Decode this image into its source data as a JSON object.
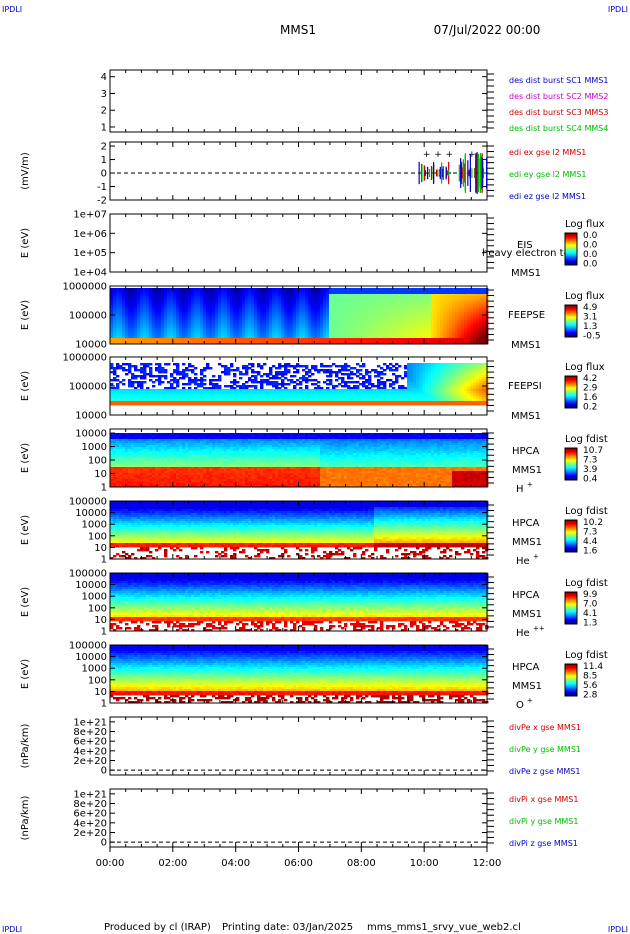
{
  "header": {
    "corner_tl": "IPDLI",
    "corner_tr": "IPDLI",
    "title": "MMS1",
    "date": "07/Jul/2022 00:00",
    "corner_bl": "IPDLI",
    "corner_br": "IPDLI"
  },
  "footer": {
    "produced": "Produced by cl (IRAP)",
    "printing": "Printing date: 03/Jan/2025",
    "file": "mms_mms1_srvy_vue_web2.cl"
  },
  "time_axis": {
    "ticks": [
      "00:00",
      "02:00",
      "04:00",
      "06:00",
      "08:00",
      "10:00",
      "12:00"
    ],
    "start_hours": 0,
    "end_hours": 12
  },
  "chart_data": [
    {
      "type": "line",
      "panel": "dist",
      "ylabel": "",
      "ylim": [
        0.7,
        4.4
      ],
      "ytick_labels": [
        "4",
        "3",
        "2",
        "1"
      ],
      "yticks": [
        4,
        3,
        2,
        1
      ],
      "legend": [
        {
          "text": "des dist burst SC1 MMS1",
          "color": "#0000cc"
        },
        {
          "text": "des dist burst SC2 MMS2",
          "color": "#cc00cc"
        },
        {
          "text": "des dist burst SC3 MMS3",
          "color": "#cc0000"
        },
        {
          "text": "des dist burst SC4 MMS4",
          "color": "#00bb00"
        }
      ]
    },
    {
      "type": "line",
      "panel": "efield",
      "ylabel": "(mV/m)",
      "ylim": [
        -2,
        2.3
      ],
      "ytick_labels": [
        "2",
        "1",
        "0",
        "-1",
        "-2"
      ],
      "yticks": [
        2,
        1,
        0,
        -1,
        -2
      ],
      "dashed_zero": true,
      "legend": [
        {
          "text": "edi ex gse l2 MMS1",
          "color": "#cc0000"
        },
        {
          "text": "edi ey gse l2 MMS1",
          "color": "#00bb00"
        },
        {
          "text": "edi ez gse l2 MMS1",
          "color": "#0000cc"
        }
      ]
    },
    {
      "type": "heatmap",
      "panel": "eis",
      "ylabel": "E (eV)",
      "log_y": true,
      "ylim": [
        10000,
        10000000
      ],
      "ytick_labels": [
        "1e+07",
        "1e+06",
        "1e+05",
        "1e+04"
      ],
      "instrument": [
        "EIS",
        "MMS1"
      ],
      "overlay_text": "heavy electron to",
      "colorbar": {
        "title": "Log flux",
        "labels": [
          "0.0",
          "0.0",
          "0.0",
          "0.0"
        ]
      },
      "empty": true
    },
    {
      "type": "heatmap",
      "panel": "feepse",
      "ylabel": "E (eV)",
      "log_y": true,
      "ylim": [
        10000,
        1000000
      ],
      "ytick_labels": [
        "1000000",
        "100000",
        "10000"
      ],
      "instrument": [
        "FEEPSE",
        "MMS1"
      ],
      "colorbar": {
        "title": "Log flux",
        "labels": [
          "4.9",
          "3.1",
          "1.3",
          "-0.5"
        ]
      }
    },
    {
      "type": "heatmap",
      "panel": "feepsi",
      "ylabel": "E (eV)",
      "log_y": true,
      "ylim": [
        10000,
        1000000
      ],
      "ytick_labels": [
        "1000000",
        "100000",
        "10000"
      ],
      "instrument": [
        "FEEPSI",
        "MMS1"
      ],
      "colorbar": {
        "title": "Log flux",
        "labels": [
          "4.2",
          "2.9",
          "1.6",
          "0.2"
        ]
      }
    },
    {
      "type": "heatmap",
      "panel": "hpca_h",
      "ylabel": "E (eV)",
      "log_y": true,
      "ylim": [
        1,
        20000
      ],
      "ytick_labels": [
        "10000",
        "1000",
        "100",
        "10",
        "1"
      ],
      "instrument": [
        "HPCA",
        "MMS1"
      ],
      "species": "H",
      "charge": "+",
      "colorbar": {
        "title": "Log fdist",
        "labels": [
          "10.7",
          "7.3",
          "3.9",
          "0.4"
        ]
      }
    },
    {
      "type": "heatmap",
      "panel": "hpca_he",
      "ylabel": "E (eV)",
      "log_y": true,
      "ylim": [
        1,
        100000
      ],
      "ytick_labels": [
        "100000",
        "10000",
        "1000",
        "100",
        "10",
        "1"
      ],
      "instrument": [
        "HPCA",
        "MMS1"
      ],
      "species": "He",
      "charge": "+",
      "colorbar": {
        "title": "Log fdist",
        "labels": [
          "10.2",
          "7.3",
          "4.4",
          "1.6"
        ]
      }
    },
    {
      "type": "heatmap",
      "panel": "hpca_he2",
      "ylabel": "E (eV)",
      "log_y": true,
      "ylim": [
        1,
        100000
      ],
      "ytick_labels": [
        "100000",
        "10000",
        "1000",
        "100",
        "10",
        "1"
      ],
      "instrument": [
        "HPCA",
        "MMS1"
      ],
      "species": "He",
      "charge": "++",
      "colorbar": {
        "title": "Log fdist",
        "labels": [
          "9.9",
          "7.0",
          "4.1",
          "1.3"
        ]
      }
    },
    {
      "type": "heatmap",
      "panel": "hpca_o",
      "ylabel": "E (eV)",
      "log_y": true,
      "ylim": [
        1,
        100000
      ],
      "ytick_labels": [
        "100000",
        "10000",
        "1000",
        "100",
        "10",
        "1"
      ],
      "instrument": [
        "HPCA",
        "MMS1"
      ],
      "species": "O",
      "charge": "+",
      "colorbar": {
        "title": "Log fdist",
        "labels": [
          "11.4",
          "8.5",
          "5.6",
          "2.8"
        ]
      }
    },
    {
      "type": "line",
      "panel": "divpe",
      "ylabel": "(nPa/km)",
      "ylim": [
        -1e+20,
        1.1e+21
      ],
      "ytick_labels": [
        "1e+21",
        "8e+20",
        "6e+20",
        "4e+20",
        "2e+20",
        "0"
      ],
      "yticks": [
        1e+21,
        8e+20,
        6e+20,
        4e+20,
        2e+20,
        0
      ],
      "dashed_zero": true,
      "legend": [
        {
          "text": "divPe x gse MMS1",
          "color": "#cc0000"
        },
        {
          "text": "divPe y gse MMS1",
          "color": "#00bb00"
        },
        {
          "text": "divPe z gse MMS1",
          "color": "#0000cc"
        }
      ]
    },
    {
      "type": "line",
      "panel": "divpi",
      "ylabel": "(nPa/km)",
      "ylim": [
        -1e+20,
        1.1e+21
      ],
      "ytick_labels": [
        "1e+21",
        "8e+20",
        "6e+20",
        "4e+20",
        "2e+20",
        "0"
      ],
      "yticks": [
        1e+21,
        8e+20,
        6e+20,
        4e+20,
        2e+20,
        0
      ],
      "dashed_zero": true,
      "legend": [
        {
          "text": "divPi x gse MMS1",
          "color": "#cc0000"
        },
        {
          "text": "divPi y gse MMS1",
          "color": "#00bb00"
        },
        {
          "text": "divPi z gse MMS1",
          "color": "#0000cc"
        }
      ]
    }
  ]
}
